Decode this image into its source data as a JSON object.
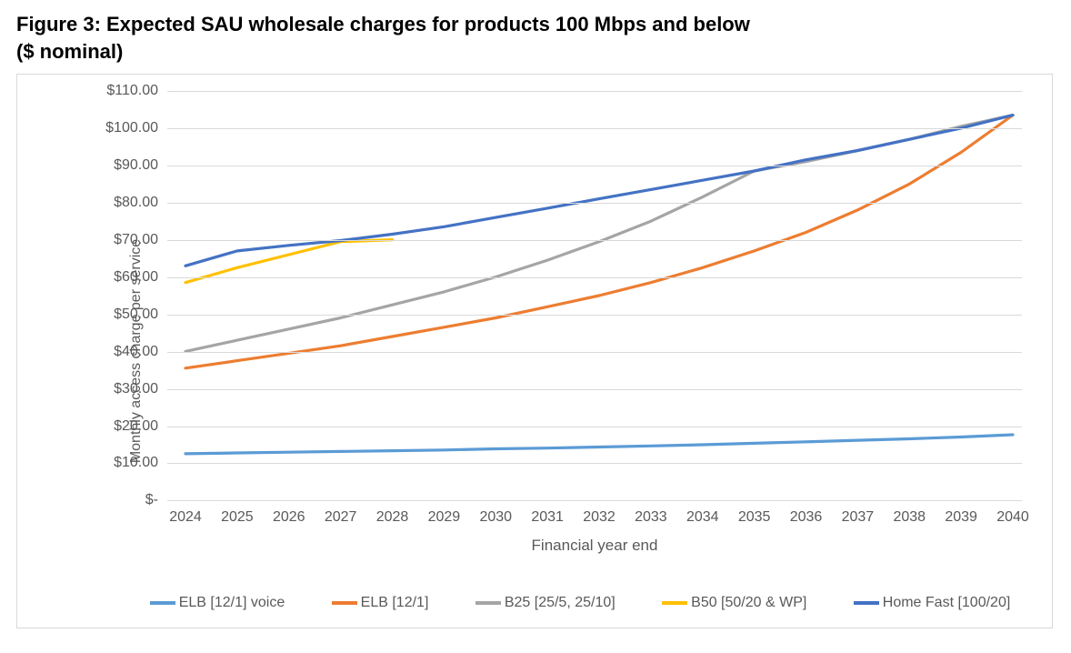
{
  "title_line1": "Figure 3: Expected SAU wholesale charges for products 100 Mbps and below",
  "title_line2": "($ nominal)",
  "y_axis_title": "Monthly access charge per service",
  "x_axis_title": "Financial year end",
  "chart": {
    "type": "line",
    "background_color": "#ffffff",
    "border_color": "#d9d9d9",
    "grid_color": "#d9d9d9",
    "axis_label_color": "#595959",
    "line_width": 3.2,
    "y": {
      "min": 0,
      "max": 110,
      "step": 10,
      "tick_labels": [
        "$-",
        "$10.00",
        "$20.00",
        "$30.00",
        "$40.00",
        "$50.00",
        "$60.00",
        "$70.00",
        "$80.00",
        "$90.00",
        "$100.00",
        "$110.00"
      ]
    },
    "x": {
      "categories": [
        "2024",
        "2025",
        "2026",
        "2027",
        "2028",
        "2029",
        "2030",
        "2031",
        "2032",
        "2033",
        "2034",
        "2035",
        "2036",
        "2037",
        "2038",
        "2039",
        "2040"
      ]
    },
    "series": [
      {
        "name": "ELB  [12/1] voice",
        "color": "#5b9bd5",
        "data": [
          12.5,
          12.7,
          12.9,
          13.1,
          13.3,
          13.5,
          13.8,
          14.0,
          14.3,
          14.6,
          14.9,
          15.3,
          15.7,
          16.1,
          16.5,
          17.0,
          17.6
        ]
      },
      {
        "name": "ELB  [12/1]",
        "color": "#ed7d31",
        "data": [
          35.5,
          37.5,
          39.5,
          41.5,
          44.0,
          46.5,
          49.0,
          52.0,
          55.0,
          58.5,
          62.5,
          67.0,
          72.0,
          78.0,
          85.0,
          93.5,
          103.5
        ]
      },
      {
        "name": "B25 [25/5, 25/10]",
        "color": "#a5a5a5",
        "data": [
          40.0,
          43.0,
          46.0,
          49.0,
          52.5,
          56.0,
          60.0,
          64.5,
          69.5,
          75.0,
          81.5,
          88.5,
          91.0,
          94.0,
          97.0,
          100.5,
          103.5
        ]
      },
      {
        "name": "B50 [50/20 & WP]",
        "color": "#ffc000",
        "data": [
          58.5,
          62.5,
          66.0,
          69.5,
          70.0,
          null,
          null,
          null,
          null,
          null,
          null,
          null,
          null,
          null,
          null,
          null,
          null
        ]
      },
      {
        "name": "Home Fast [100/20]",
        "color": "#4472c4",
        "data": [
          63.0,
          67.0,
          68.5,
          69.8,
          71.5,
          73.5,
          76.0,
          78.5,
          81.0,
          83.5,
          86.0,
          88.5,
          91.5,
          94.0,
          97.0,
          100.0,
          103.5
        ]
      }
    ]
  }
}
